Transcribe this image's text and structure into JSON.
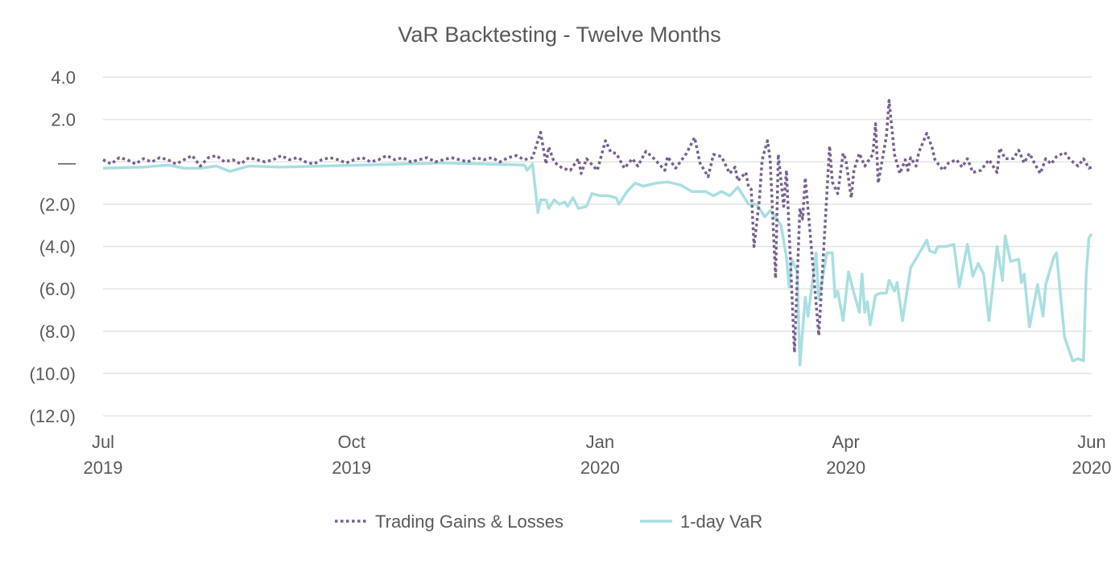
{
  "chart_data": {
    "type": "line",
    "title": "VaR Backtesting - Twelve Months",
    "xlabel": "",
    "ylabel": "",
    "x_units": "days since 2019-07-01",
    "xlim": [
      0,
      366
    ],
    "ylim": [
      -12,
      4
    ],
    "grid": true,
    "legend_placement": "bottom",
    "y_ticks": [
      {
        "value": 4,
        "label": "4.0"
      },
      {
        "value": 2,
        "label": "2.0"
      },
      {
        "value": 0,
        "label": "—"
      },
      {
        "value": -2,
        "label": "(2.0)"
      },
      {
        "value": -4,
        "label": "(4.0)"
      },
      {
        "value": -6,
        "label": "(6.0)"
      },
      {
        "value": -8,
        "label": "(8.0)"
      },
      {
        "value": -10,
        "label": "(10.0)"
      },
      {
        "value": -12,
        "label": "(12.0)"
      }
    ],
    "x_ticks": [
      {
        "value": 0,
        "month": "Jul",
        "year": "2019"
      },
      {
        "value": 92,
        "month": "Oct",
        "year": "2019"
      },
      {
        "value": 184,
        "month": "Jan",
        "year": "2020"
      },
      {
        "value": 275,
        "month": "Apr",
        "year": "2020"
      },
      {
        "value": 366,
        "month": "Jun",
        "year": "2020"
      }
    ],
    "series": [
      {
        "name": "Trading Gains & Losses",
        "color": "#76608f",
        "style": "dotted",
        "points": [
          [
            0,
            0.1
          ],
          [
            3,
            -0.1
          ],
          [
            6,
            0.2
          ],
          [
            9,
            0.1
          ],
          [
            12,
            -0.1
          ],
          [
            15,
            0.15
          ],
          [
            18,
            0
          ],
          [
            21,
            0.2
          ],
          [
            24,
            0.1
          ],
          [
            27,
            -0.1
          ],
          [
            30,
            0.1
          ],
          [
            33,
            0.3
          ],
          [
            36,
            -0.2
          ],
          [
            39,
            0.2
          ],
          [
            42,
            0.3
          ],
          [
            45,
            0
          ],
          [
            48,
            0.1
          ],
          [
            51,
            -0.1
          ],
          [
            54,
            0.2
          ],
          [
            57,
            0.1
          ],
          [
            60,
            0
          ],
          [
            63,
            0.1
          ],
          [
            66,
            0.3
          ],
          [
            69,
            0.1
          ],
          [
            72,
            0.2
          ],
          [
            75,
            0
          ],
          [
            78,
            -0.1
          ],
          [
            81,
            0.1
          ],
          [
            84,
            0.2
          ],
          [
            87,
            0.1
          ],
          [
            90,
            -0.05
          ],
          [
            93,
            0.1
          ],
          [
            96,
            0.2
          ],
          [
            99,
            0
          ],
          [
            102,
            0.1
          ],
          [
            105,
            0.3
          ],
          [
            108,
            0.1
          ],
          [
            111,
            0.2
          ],
          [
            114,
            0
          ],
          [
            117,
            0.1
          ],
          [
            120,
            0.2
          ],
          [
            123,
            0
          ],
          [
            126,
            0.1
          ],
          [
            129,
            0.2
          ],
          [
            132,
            0.1
          ],
          [
            135,
            0
          ],
          [
            138,
            0.2
          ],
          [
            141,
            0.1
          ],
          [
            144,
            0.2
          ],
          [
            147,
            0
          ],
          [
            150,
            0.2
          ],
          [
            153,
            0.3
          ],
          [
            156,
            0.1
          ],
          [
            159,
            0.2
          ],
          [
            162,
            1.4
          ],
          [
            164,
            -0.1
          ],
          [
            165,
            0.7
          ],
          [
            167,
            0
          ],
          [
            170,
            -0.3
          ],
          [
            173,
            -0.4
          ],
          [
            176,
            0.15
          ],
          [
            177,
            -0.55
          ],
          [
            179,
            0.15
          ],
          [
            183,
            -0.4
          ],
          [
            186,
            1.0
          ],
          [
            188,
            0.45
          ],
          [
            190,
            0.4
          ],
          [
            193,
            -0.3
          ],
          [
            196,
            0.15
          ],
          [
            198,
            -0.2
          ],
          [
            201,
            0.5
          ],
          [
            204,
            0.15
          ],
          [
            208,
            -0.4
          ],
          [
            209,
            0.25
          ],
          [
            212,
            -0.3
          ],
          [
            216,
            0.4
          ],
          [
            219,
            1.15
          ],
          [
            221,
            -0.05
          ],
          [
            224,
            -0.7
          ],
          [
            226,
            0.35
          ],
          [
            229,
            0.25
          ],
          [
            232,
            -0.55
          ],
          [
            234,
            -0.25
          ],
          [
            235,
            -0.9
          ],
          [
            238,
            -0.5
          ],
          [
            239,
            -1.2
          ],
          [
            240,
            -1.3
          ],
          [
            241,
            -4.0
          ],
          [
            243,
            -1.8
          ],
          [
            244,
            0.1
          ],
          [
            246,
            1.0
          ],
          [
            247,
            0.1
          ],
          [
            249,
            -5.5
          ],
          [
            250,
            0.35
          ],
          [
            252,
            -2.1
          ],
          [
            253,
            -0.4
          ],
          [
            256,
            -9.0
          ],
          [
            258,
            -2.2
          ],
          [
            259,
            -2.7
          ],
          [
            260,
            -0.75
          ],
          [
            262,
            -3.7
          ],
          [
            265,
            -8.2
          ],
          [
            269,
            0.75
          ],
          [
            270,
            -0.95
          ],
          [
            272,
            -1.5
          ],
          [
            274,
            0.4
          ],
          [
            275,
            0.1
          ],
          [
            277,
            -1.7
          ],
          [
            278,
            -0.4
          ],
          [
            280,
            0.4
          ],
          [
            282,
            -0.2
          ],
          [
            285,
            0.35
          ],
          [
            286,
            1.8
          ],
          [
            287,
            -1.0
          ],
          [
            290,
            1.2
          ],
          [
            291,
            2.9
          ],
          [
            293,
            0.35
          ],
          [
            295,
            -0.55
          ],
          [
            297,
            0.1
          ],
          [
            298,
            -0.4
          ],
          [
            299,
            0.2
          ],
          [
            301,
            -0.2
          ],
          [
            302,
            0.45
          ],
          [
            305,
            1.35
          ],
          [
            307,
            0.65
          ],
          [
            308,
            0.1
          ],
          [
            311,
            -0.4
          ],
          [
            313,
            -0.05
          ],
          [
            316,
            0.1
          ],
          [
            318,
            -0.25
          ],
          [
            320,
            0.15
          ],
          [
            322,
            -0.5
          ],
          [
            325,
            -0.4
          ],
          [
            328,
            0.1
          ],
          [
            331,
            -0.5
          ],
          [
            332,
            0.65
          ],
          [
            334,
            0.15
          ],
          [
            337,
            0.15
          ],
          [
            339,
            0.55
          ],
          [
            341,
            -0.05
          ],
          [
            343,
            0.4
          ],
          [
            345,
            -0.1
          ],
          [
            347,
            -0.55
          ],
          [
            349,
            0.15
          ],
          [
            351,
            -0.1
          ],
          [
            353,
            0.25
          ],
          [
            356,
            0.45
          ],
          [
            358,
            0.1
          ],
          [
            361,
            -0.2
          ],
          [
            363,
            0.15
          ],
          [
            365,
            -0.3
          ],
          [
            366,
            -0.25
          ]
        ]
      },
      {
        "name": "1-day VaR",
        "color": "#a9dfe1",
        "style": "solid",
        "points": [
          [
            0,
            -0.3
          ],
          [
            15,
            -0.25
          ],
          [
            24,
            -0.15
          ],
          [
            30,
            -0.3
          ],
          [
            36,
            -0.3
          ],
          [
            42,
            -0.2
          ],
          [
            47,
            -0.45
          ],
          [
            54,
            -0.2
          ],
          [
            66,
            -0.25
          ],
          [
            81,
            -0.2
          ],
          [
            96,
            -0.15
          ],
          [
            111,
            -0.1
          ],
          [
            126,
            -0.05
          ],
          [
            141,
            -0.1
          ],
          [
            156,
            -0.15
          ],
          [
            157,
            -0.4
          ],
          [
            159,
            -0.1
          ],
          [
            161,
            -2.4
          ],
          [
            162,
            -1.8
          ],
          [
            164,
            -1.8
          ],
          [
            165,
            -2.2
          ],
          [
            167,
            -1.8
          ],
          [
            169,
            -2.0
          ],
          [
            171,
            -1.9
          ],
          [
            172,
            -2.1
          ],
          [
            174,
            -1.7
          ],
          [
            176,
            -2.2
          ],
          [
            179,
            -2.1
          ],
          [
            181,
            -1.5
          ],
          [
            184,
            -1.6
          ],
          [
            187,
            -1.6
          ],
          [
            190,
            -1.7
          ],
          [
            191,
            -2.0
          ],
          [
            194,
            -1.4
          ],
          [
            197,
            -1.0
          ],
          [
            200,
            -1.15
          ],
          [
            205,
            -1.0
          ],
          [
            209,
            -0.95
          ],
          [
            214,
            -1.1
          ],
          [
            218,
            -1.4
          ],
          [
            223,
            -1.4
          ],
          [
            226,
            -1.6
          ],
          [
            229,
            -1.4
          ],
          [
            232,
            -1.6
          ],
          [
            235,
            -1.2
          ],
          [
            239,
            -2.0
          ],
          [
            242,
            -2.0
          ],
          [
            245,
            -2.6
          ],
          [
            247,
            -2.3
          ],
          [
            249,
            -2.6
          ],
          [
            251,
            -3.0
          ],
          [
            253,
            -4.5
          ],
          [
            254,
            -5.9
          ],
          [
            255,
            -4.6
          ],
          [
            257,
            -5.2
          ],
          [
            258,
            -9.6
          ],
          [
            260,
            -6.4
          ],
          [
            261,
            -7.3
          ],
          [
            264,
            -4.3
          ],
          [
            265,
            -6.5
          ],
          [
            268,
            -4.3
          ],
          [
            270,
            -4.3
          ],
          [
            271,
            -6.4
          ],
          [
            272,
            -6.1
          ],
          [
            274,
            -7.5
          ],
          [
            276,
            -5.2
          ],
          [
            278,
            -6.2
          ],
          [
            280,
            -7.1
          ],
          [
            281,
            -5.3
          ],
          [
            282,
            -7.1
          ],
          [
            283,
            -6.6
          ],
          [
            284,
            -7.7
          ],
          [
            286,
            -6.3
          ],
          [
            288,
            -6.2
          ],
          [
            290,
            -6.2
          ],
          [
            291,
            -5.6
          ],
          [
            293,
            -6.1
          ],
          [
            294,
            -5.7
          ],
          [
            296,
            -7.5
          ],
          [
            299,
            -5.0
          ],
          [
            305,
            -3.7
          ],
          [
            306,
            -4.2
          ],
          [
            308,
            -4.3
          ],
          [
            309,
            -4.0
          ],
          [
            312,
            -4.0
          ],
          [
            315,
            -3.9
          ],
          [
            317,
            -5.9
          ],
          [
            320,
            -3.9
          ],
          [
            322,
            -5.4
          ],
          [
            324,
            -4.8
          ],
          [
            326,
            -5.3
          ],
          [
            328,
            -7.5
          ],
          [
            331,
            -4.0
          ],
          [
            333,
            -5.6
          ],
          [
            334,
            -3.5
          ],
          [
            336,
            -4.7
          ],
          [
            339,
            -4.6
          ],
          [
            340,
            -5.7
          ],
          [
            341,
            -5.3
          ],
          [
            343,
            -7.8
          ],
          [
            346,
            -5.8
          ],
          [
            348,
            -7.3
          ],
          [
            349,
            -5.8
          ],
          [
            352,
            -4.5
          ],
          [
            353,
            -4.3
          ],
          [
            356,
            -8.3
          ],
          [
            359,
            -9.4
          ],
          [
            361,
            -9.3
          ],
          [
            363,
            -9.4
          ],
          [
            364,
            -5.3
          ],
          [
            365,
            -3.6
          ],
          [
            366,
            -3.4
          ]
        ]
      }
    ]
  }
}
